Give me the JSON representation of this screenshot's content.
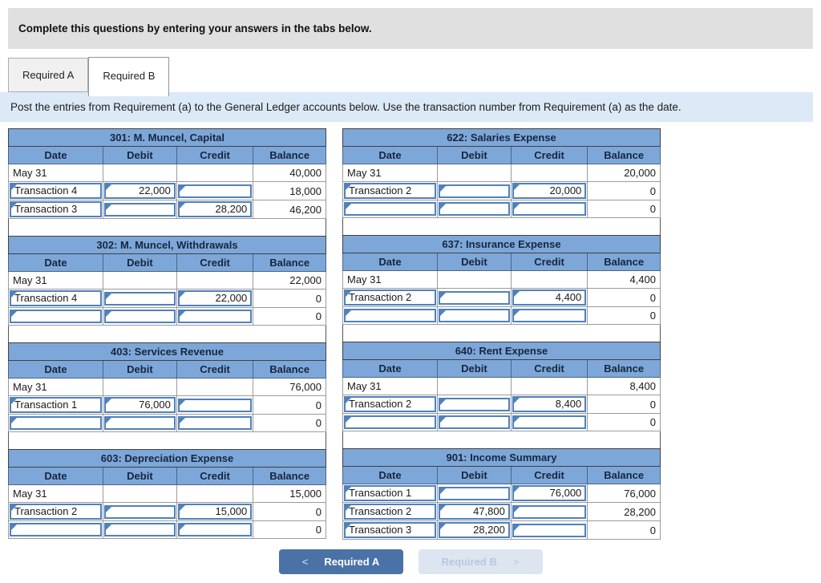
{
  "banner": {
    "text": "Complete this questions by entering your answers in the tabs below."
  },
  "tabs": [
    {
      "label": "Required A",
      "active": false
    },
    {
      "label": "Required B",
      "active": true
    }
  ],
  "instruction": "Post the entries from Requirement (a) to the General Ledger accounts below. Use the transaction number from Requirement (a) as the date.",
  "table_columns": [
    "Date",
    "Debit",
    "Credit",
    "Balance"
  ],
  "ledgers": {
    "left": [
      {
        "title": "301: M. Muncel, Capital",
        "rows": [
          {
            "date": "May 31",
            "debit": "",
            "credit": "",
            "balance": "40,000",
            "editable": false
          },
          {
            "date": "Transaction 4",
            "debit": "22,000",
            "credit": "",
            "balance": "18,000",
            "editable": true
          },
          {
            "date": "Transaction 3",
            "debit": "",
            "credit": "28,200",
            "balance": "46,200",
            "editable": true
          }
        ]
      },
      {
        "title": "302: M. Muncel, Withdrawals",
        "rows": [
          {
            "date": "May 31",
            "debit": "",
            "credit": "",
            "balance": "22,000",
            "editable": false
          },
          {
            "date": "Transaction 4",
            "debit": "",
            "credit": "22,000",
            "balance": "0",
            "editable": true
          },
          {
            "date": "",
            "debit": "",
            "credit": "",
            "balance": "0",
            "editable": true
          }
        ]
      },
      {
        "title": "403: Services Revenue",
        "rows": [
          {
            "date": "May 31",
            "debit": "",
            "credit": "",
            "balance": "76,000",
            "editable": false
          },
          {
            "date": "Transaction 1",
            "debit": "76,000",
            "credit": "",
            "balance": "0",
            "editable": true
          },
          {
            "date": "",
            "debit": "",
            "credit": "",
            "balance": "0",
            "editable": true
          }
        ]
      },
      {
        "title": "603: Depreciation Expense",
        "rows": [
          {
            "date": "May 31",
            "debit": "",
            "credit": "",
            "balance": "15,000",
            "editable": false
          },
          {
            "date": "Transaction 2",
            "debit": "",
            "credit": "15,000",
            "balance": "0",
            "editable": true
          },
          {
            "date": "",
            "debit": "",
            "credit": "",
            "balance": "0",
            "editable": true
          }
        ]
      }
    ],
    "right": [
      {
        "title": "622: Salaries Expense",
        "rows": [
          {
            "date": "May 31",
            "debit": "",
            "credit": "",
            "balance": "20,000",
            "editable": false
          },
          {
            "date": "Transaction 2",
            "debit": "",
            "credit": "20,000",
            "balance": "0",
            "editable": true
          },
          {
            "date": "",
            "debit": "",
            "credit": "",
            "balance": "0",
            "editable": true
          }
        ]
      },
      {
        "title": "637: Insurance Expense",
        "rows": [
          {
            "date": "May 31",
            "debit": "",
            "credit": "",
            "balance": "4,400",
            "editable": false
          },
          {
            "date": "Transaction 2",
            "debit": "",
            "credit": "4,400",
            "balance": "0",
            "editable": true
          },
          {
            "date": "",
            "debit": "",
            "credit": "",
            "balance": "0",
            "editable": true
          }
        ]
      },
      {
        "title": "640: Rent Expense",
        "rows": [
          {
            "date": "May 31",
            "debit": "",
            "credit": "",
            "balance": "8,400",
            "editable": false
          },
          {
            "date": "Transaction 2",
            "debit": "",
            "credit": "8,400",
            "balance": "0",
            "editable": true
          },
          {
            "date": "",
            "debit": "",
            "credit": "",
            "balance": "0",
            "editable": true
          }
        ]
      },
      {
        "title": "901: Income Summary",
        "rows": [
          {
            "date": "Transaction 1",
            "debit": "",
            "credit": "76,000",
            "balance": "76,000",
            "editable": true
          },
          {
            "date": "Transaction 2",
            "debit": "47,800",
            "credit": "",
            "balance": "28,200",
            "editable": true
          },
          {
            "date": "Transaction 3",
            "debit": "28,200",
            "credit": "",
            "balance": "0",
            "editable": true
          }
        ]
      }
    ]
  },
  "footer": {
    "prev_button": {
      "chevron": "<",
      "label": "Required A"
    },
    "next_button": {
      "label": "Required B",
      "chevron": ">"
    }
  },
  "colors": {
    "header_blue": "#7ea7d9",
    "input_border_blue": "#4f81bd",
    "button_blue": "#4a72a7",
    "button_disabled_bg": "#dde5f0",
    "button_disabled_text": "#b9c7dd",
    "instruction_bg": "#dce9f7",
    "banner_bg": "#e0e0e0"
  }
}
